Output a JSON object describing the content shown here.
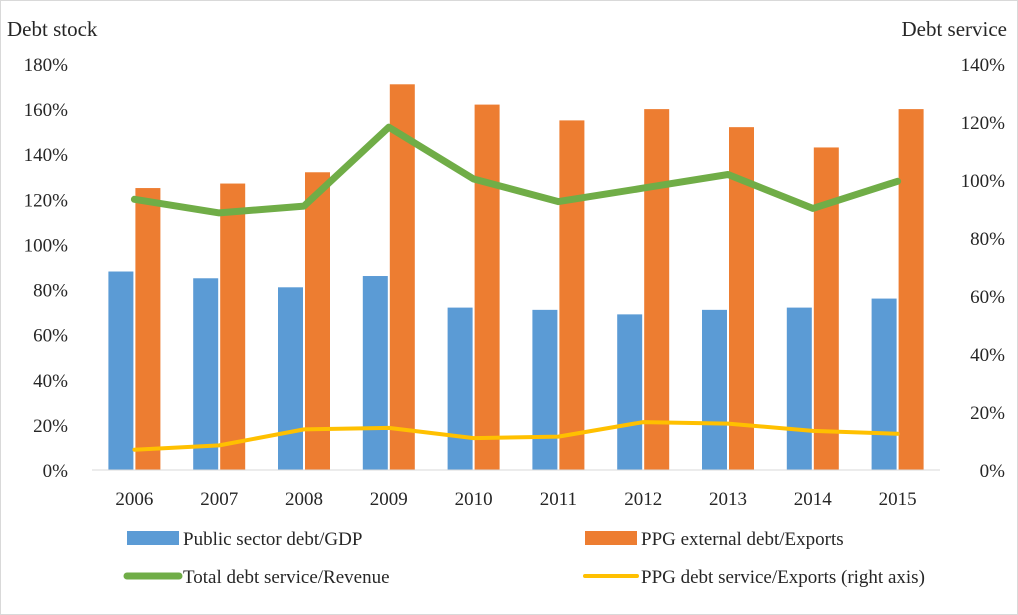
{
  "chart_data": {
    "type": "bar",
    "left_axis_title": "Debt stock",
    "right_axis_title": "Debt service",
    "categories": [
      "2006",
      "2007",
      "2008",
      "2009",
      "2010",
      "2011",
      "2012",
      "2013",
      "2014",
      "2015"
    ],
    "y_left": {
      "min": 0,
      "max": 180,
      "step": 20,
      "tick_labels": [
        "0%",
        "20%",
        "40%",
        "60%",
        "80%",
        "100%",
        "120%",
        "140%",
        "160%",
        "180%"
      ]
    },
    "y_right": {
      "min": 0,
      "max": 140,
      "step": 20,
      "tick_labels": [
        "0%",
        "20%",
        "40%",
        "60%",
        "80%",
        "100%",
        "120%",
        "140%"
      ]
    },
    "series": [
      {
        "name": "Public sector debt/GDP",
        "kind": "bar",
        "axis": "left",
        "color": "#5B9BD5",
        "values": [
          88,
          85,
          81,
          86,
          72,
          71,
          69,
          71,
          72,
          76
        ]
      },
      {
        "name": "PPG external debt/Exports",
        "kind": "bar",
        "axis": "left",
        "color": "#ED7D31",
        "values": [
          125,
          127,
          132,
          171,
          162,
          155,
          160,
          152,
          143,
          160
        ]
      },
      {
        "name": "Total debt service/Revenue",
        "kind": "line",
        "axis": "left",
        "color": "#70AD47",
        "values": [
          120,
          114,
          117,
          152,
          129,
          119,
          125,
          131,
          116,
          128
        ]
      },
      {
        "name": "PPG debt service/Exports (right axis)",
        "kind": "line",
        "axis": "right",
        "color": "#FFC000",
        "values": [
          7,
          8.5,
          14,
          14.5,
          11,
          11.5,
          16.5,
          16,
          13.5,
          12.5
        ]
      }
    ],
    "grid": false,
    "legend_position": "bottom"
  }
}
